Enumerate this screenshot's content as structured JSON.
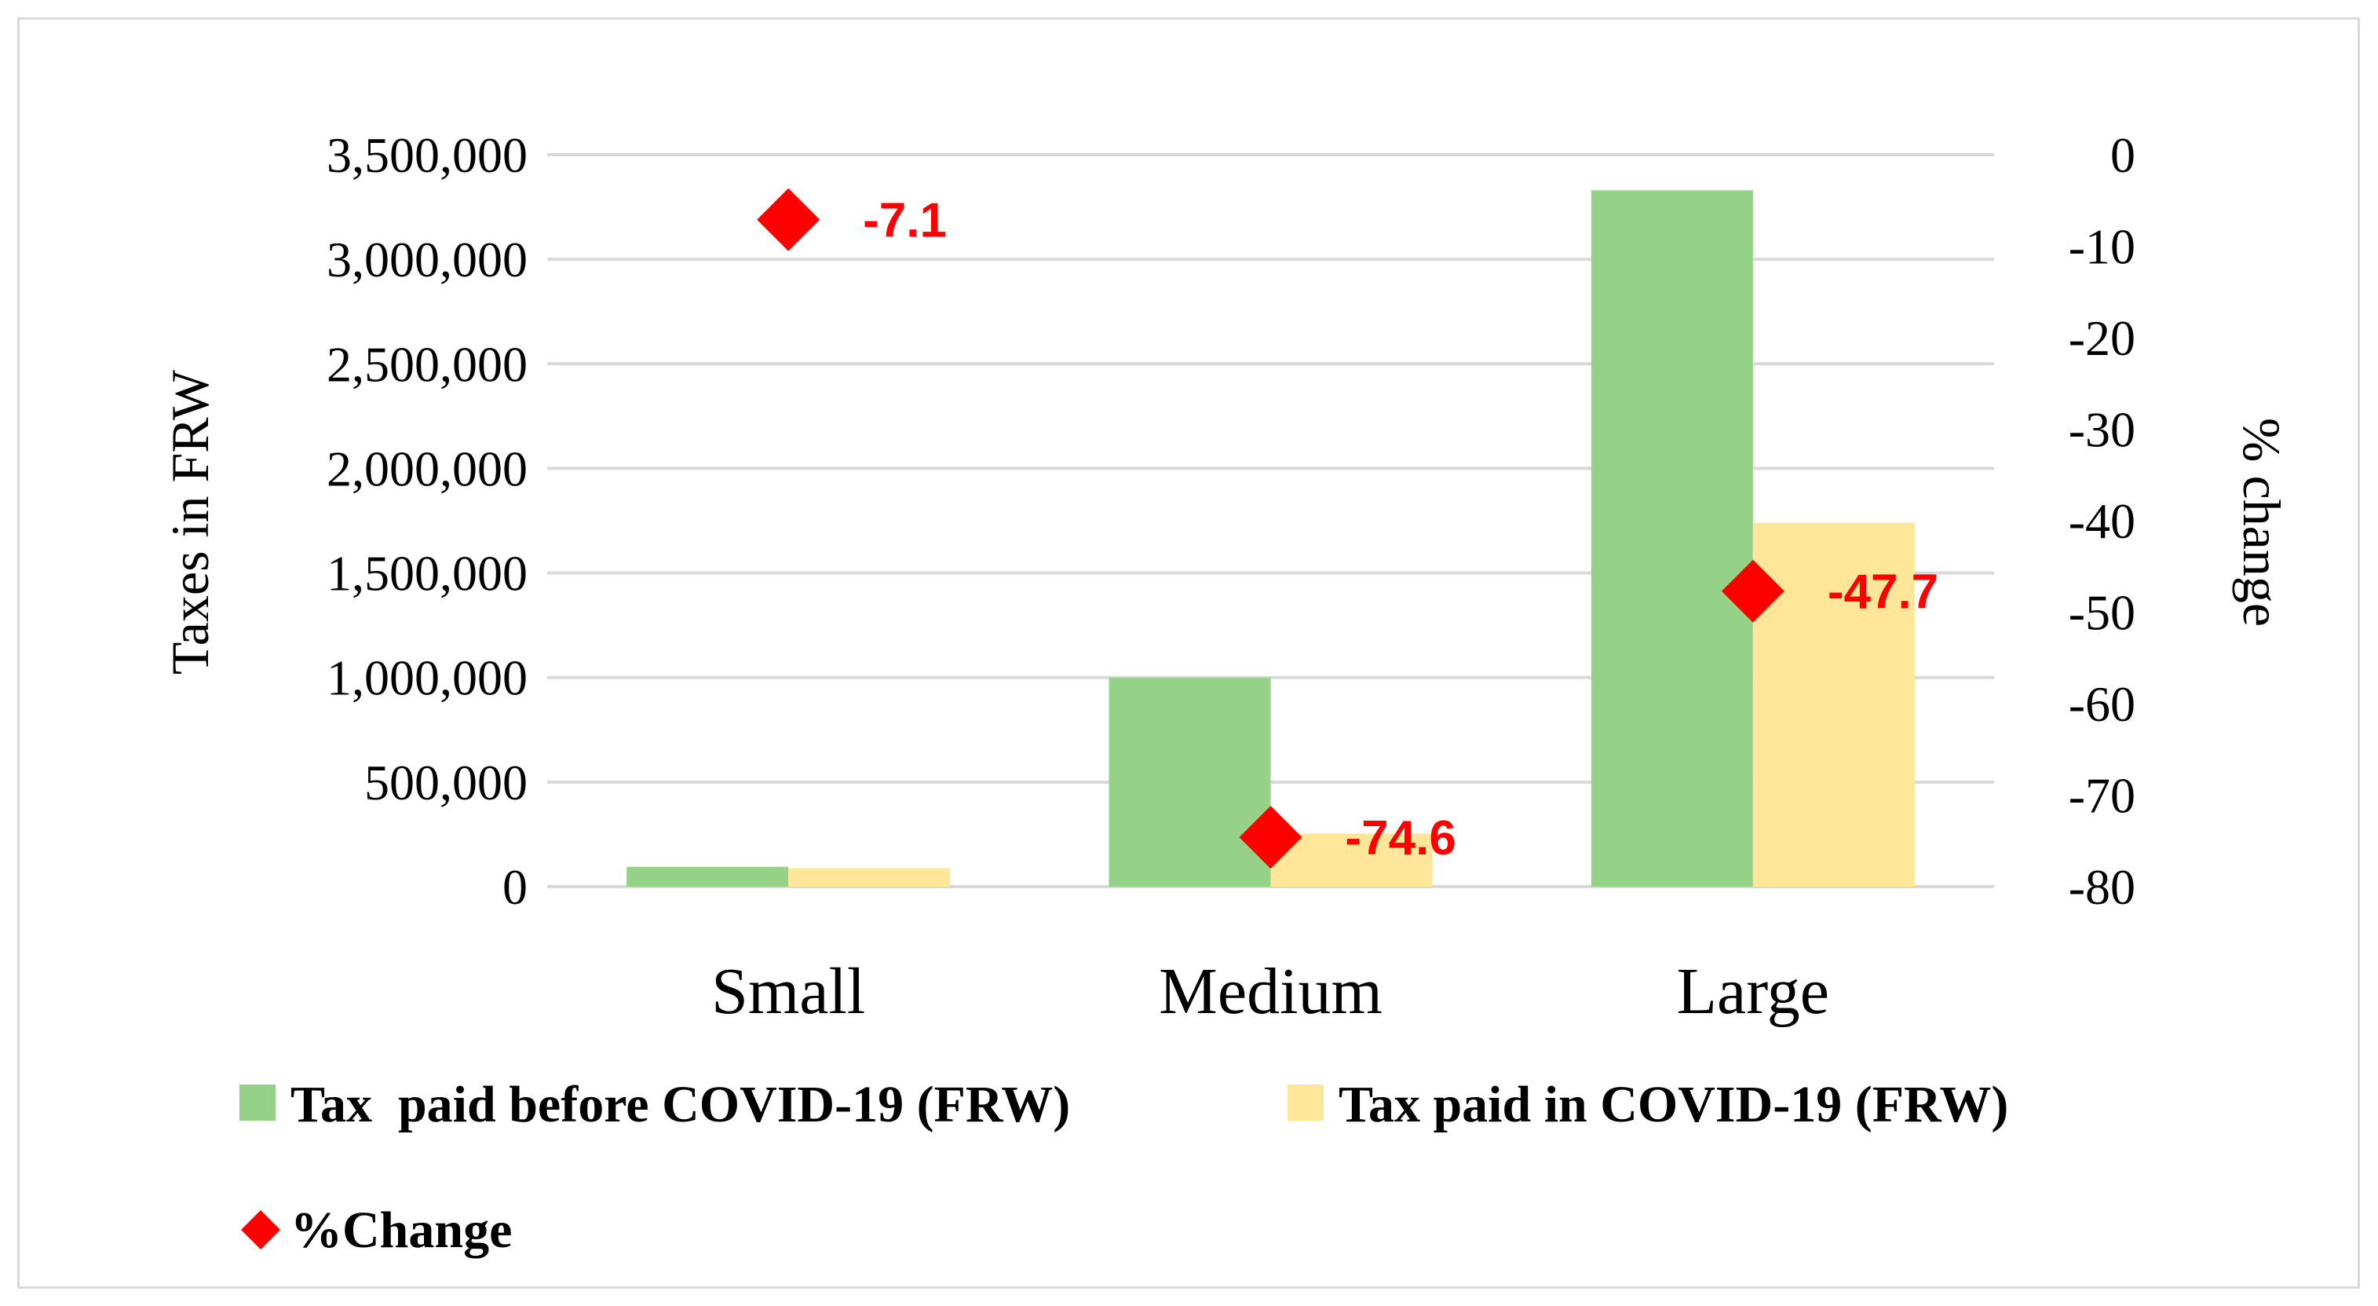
{
  "chart_data": {
    "type": "bar",
    "categories": [
      "Small",
      "Medium",
      "Large"
    ],
    "series": [
      {
        "name": "Tax  paid before COVID-19 (FRW)",
        "kind": "bar",
        "axis": "left",
        "color": "#95d288",
        "values": [
          95000,
          1000000,
          3330000
        ]
      },
      {
        "name": "Tax paid in COVID-19 (FRW)",
        "kind": "bar",
        "axis": "left",
        "color": "#ffe699",
        "values": [
          88000,
          254000,
          1740000
        ]
      },
      {
        "name": "%Change",
        "kind": "scatter",
        "marker": "diamond",
        "axis": "right",
        "color": "#ff0000",
        "values": [
          -7.1,
          -74.6,
          -47.7
        ],
        "labels": [
          "-7.1",
          "-74.6",
          "-47.7"
        ]
      }
    ],
    "ylabel": "Taxes in FRW",
    "y2label": "% change",
    "ylim": [
      0,
      3500000
    ],
    "y2lim": [
      -80,
      0
    ],
    "yticks": [
      "0",
      "500,000",
      "1,000,000",
      "1,500,000",
      "2,000,000",
      "2,500,000",
      "3,000,000",
      "3,500,000"
    ],
    "y2ticks": [
      "-80",
      "-70",
      "-60",
      "-50",
      "-40",
      "-30",
      "-20",
      "-10",
      "0"
    ],
    "grid": true,
    "legend": "bottom"
  }
}
